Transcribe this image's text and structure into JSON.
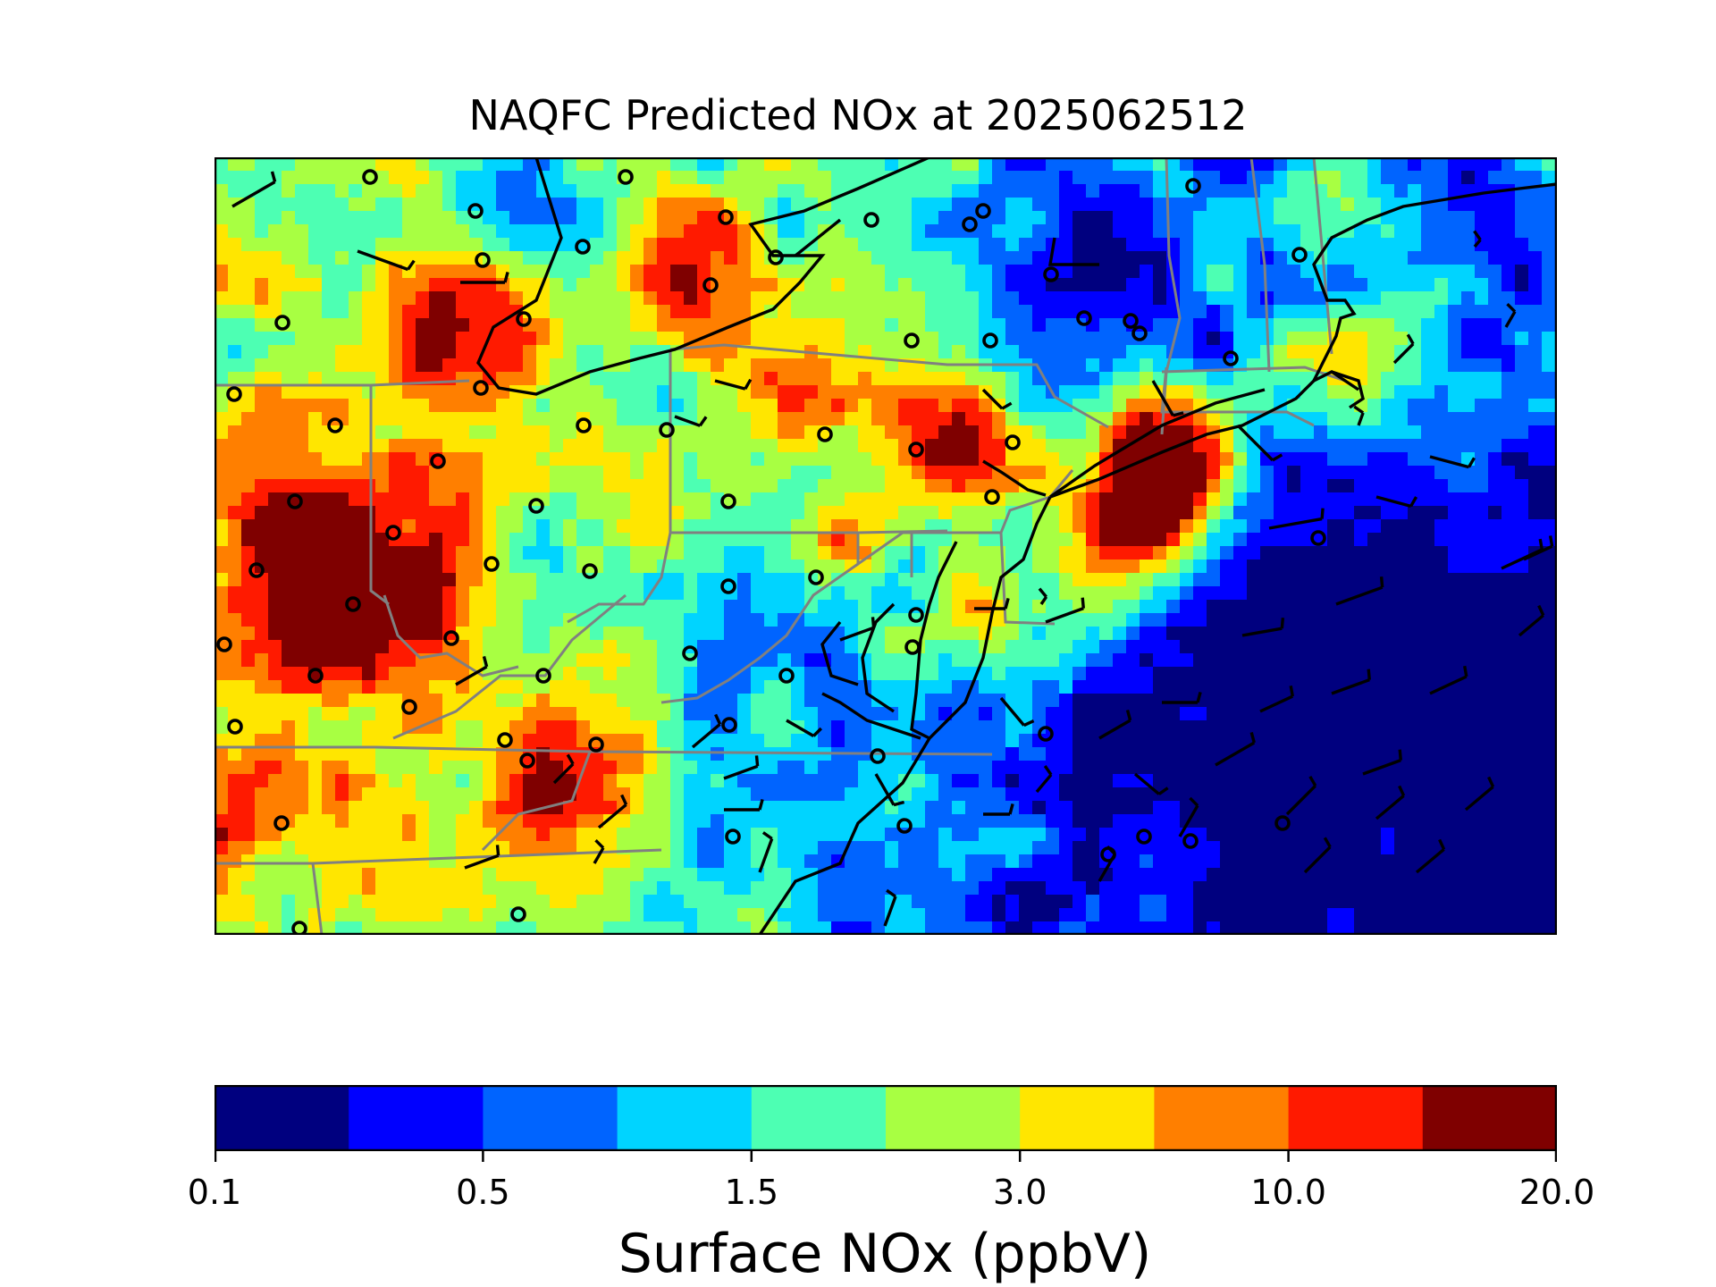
{
  "title": "NAQFC Predicted NOx at 2025062512",
  "colorbar": {
    "label": "Surface NOx (ppbV)",
    "ticks": [
      "0.1",
      "0.5",
      "1.5",
      "3.0",
      "10.0",
      "20.0"
    ],
    "colors": [
      "#00007f",
      "#0000ff",
      "#0064ff",
      "#00d4ff",
      "#4dffb3",
      "#a8ff42",
      "#ffe600",
      "#ff7f00",
      "#ff1a00",
      "#7f0000"
    ]
  },
  "map": {
    "state_border_color": "#808080",
    "coast_color": "#000000",
    "station_marker": "open-circle",
    "wind_barbs": true
  }
}
